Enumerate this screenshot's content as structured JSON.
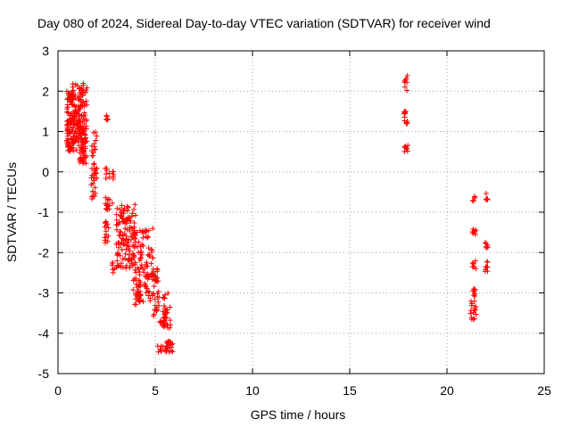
{
  "chart_data": {
    "type": "scatter",
    "title": "Day 080 of 2024, Sidereal Day-to-day VTEC variation (SDTVAR) for receiver wind",
    "xlabel": "GPS time / hours",
    "ylabel": "SDTVAR / TECUs",
    "xlim": [
      0,
      25
    ],
    "ylim": [
      -5,
      3
    ],
    "xticks": [
      "0",
      "5",
      "10",
      "15",
      "20",
      "25"
    ],
    "yticks": [
      "-5",
      "-4",
      "-3",
      "-2",
      "-1",
      "0",
      "1",
      "2",
      "3"
    ],
    "grid": true,
    "marker": "+",
    "color": "#ff0000",
    "series": [
      {
        "name": "SDTVAR",
        "clusters": [
          {
            "x": [
              0.45,
              0.75
            ],
            "y": [
              0.5,
              2.0
            ],
            "n": 90
          },
          {
            "x": [
              0.75,
              1.5
            ],
            "y": [
              0.5,
              2.2
            ],
            "n": 140
          },
          {
            "x": [
              1.0,
              1.45
            ],
            "y": [
              0.2,
              1.0
            ],
            "n": 40
          },
          {
            "x": [
              1.7,
              2.0
            ],
            "y": [
              -0.7,
              1.0
            ],
            "n": 40
          },
          {
            "x": [
              2.4,
              2.6
            ],
            "y": [
              1.1,
              1.4
            ],
            "n": 6
          },
          {
            "x": [
              2.4,
              2.9
            ],
            "y": [
              -0.2,
              0.1
            ],
            "n": 12
          },
          {
            "x": [
              2.4,
              2.8
            ],
            "y": [
              -1.0,
              -0.6
            ],
            "n": 15
          },
          {
            "x": [
              2.4,
              2.6
            ],
            "y": [
              -1.8,
              -1.2
            ],
            "n": 15
          },
          {
            "x": [
              2.7,
              2.9
            ],
            "y": [
              -2.5,
              -2.2
            ],
            "n": 6
          },
          {
            "x": [
              3.0,
              4.0
            ],
            "y": [
              -2.4,
              -0.8
            ],
            "n": 120
          },
          {
            "x": [
              3.8,
              4.9
            ],
            "y": [
              -3.3,
              -1.4
            ],
            "n": 110
          },
          {
            "x": [
              4.0,
              4.3
            ],
            "y": [
              -3.2,
              -2.8
            ],
            "n": 15
          },
          {
            "x": [
              4.9,
              5.2
            ],
            "y": [
              -3.6,
              -2.4
            ],
            "n": 30
          },
          {
            "x": [
              5.2,
              5.5
            ],
            "y": [
              -3.9,
              -3.7
            ],
            "n": 8
          },
          {
            "x": [
              5.0,
              5.4
            ],
            "y": [
              -4.5,
              -4.3
            ],
            "n": 8
          },
          {
            "x": [
              5.4,
              5.8
            ],
            "y": [
              -3.9,
              -3.0
            ],
            "n": 30
          },
          {
            "x": [
              5.5,
              5.9
            ],
            "y": [
              -4.5,
              -4.2
            ],
            "n": 25
          },
          {
            "x": [
              17.8,
              18.0
            ],
            "y": [
              2.0,
              2.4
            ],
            "n": 8
          },
          {
            "x": [
              17.8,
              18.0
            ],
            "y": [
              1.1,
              1.5
            ],
            "n": 12
          },
          {
            "x": [
              17.8,
              18.0
            ],
            "y": [
              0.5,
              0.7
            ],
            "n": 8
          },
          {
            "x": [
              21.3,
              21.5
            ],
            "y": [
              -0.75,
              -0.6
            ],
            "n": 6
          },
          {
            "x": [
              21.3,
              21.5
            ],
            "y": [
              -1.6,
              -1.4
            ],
            "n": 8
          },
          {
            "x": [
              21.3,
              21.5
            ],
            "y": [
              -2.4,
              -2.2
            ],
            "n": 8
          },
          {
            "x": [
              21.3,
              21.5
            ],
            "y": [
              -3.1,
              -2.8
            ],
            "n": 8
          },
          {
            "x": [
              21.2,
              21.5
            ],
            "y": [
              -3.7,
              -3.2
            ],
            "n": 16
          },
          {
            "x": [
              21.95,
              22.1
            ],
            "y": [
              -0.7,
              -0.5
            ],
            "n": 5
          },
          {
            "x": [
              21.95,
              22.1
            ],
            "y": [
              -1.9,
              -1.6
            ],
            "n": 6
          },
          {
            "x": [
              21.95,
              22.1
            ],
            "y": [
              -2.5,
              -2.2
            ],
            "n": 8
          }
        ]
      }
    ]
  }
}
